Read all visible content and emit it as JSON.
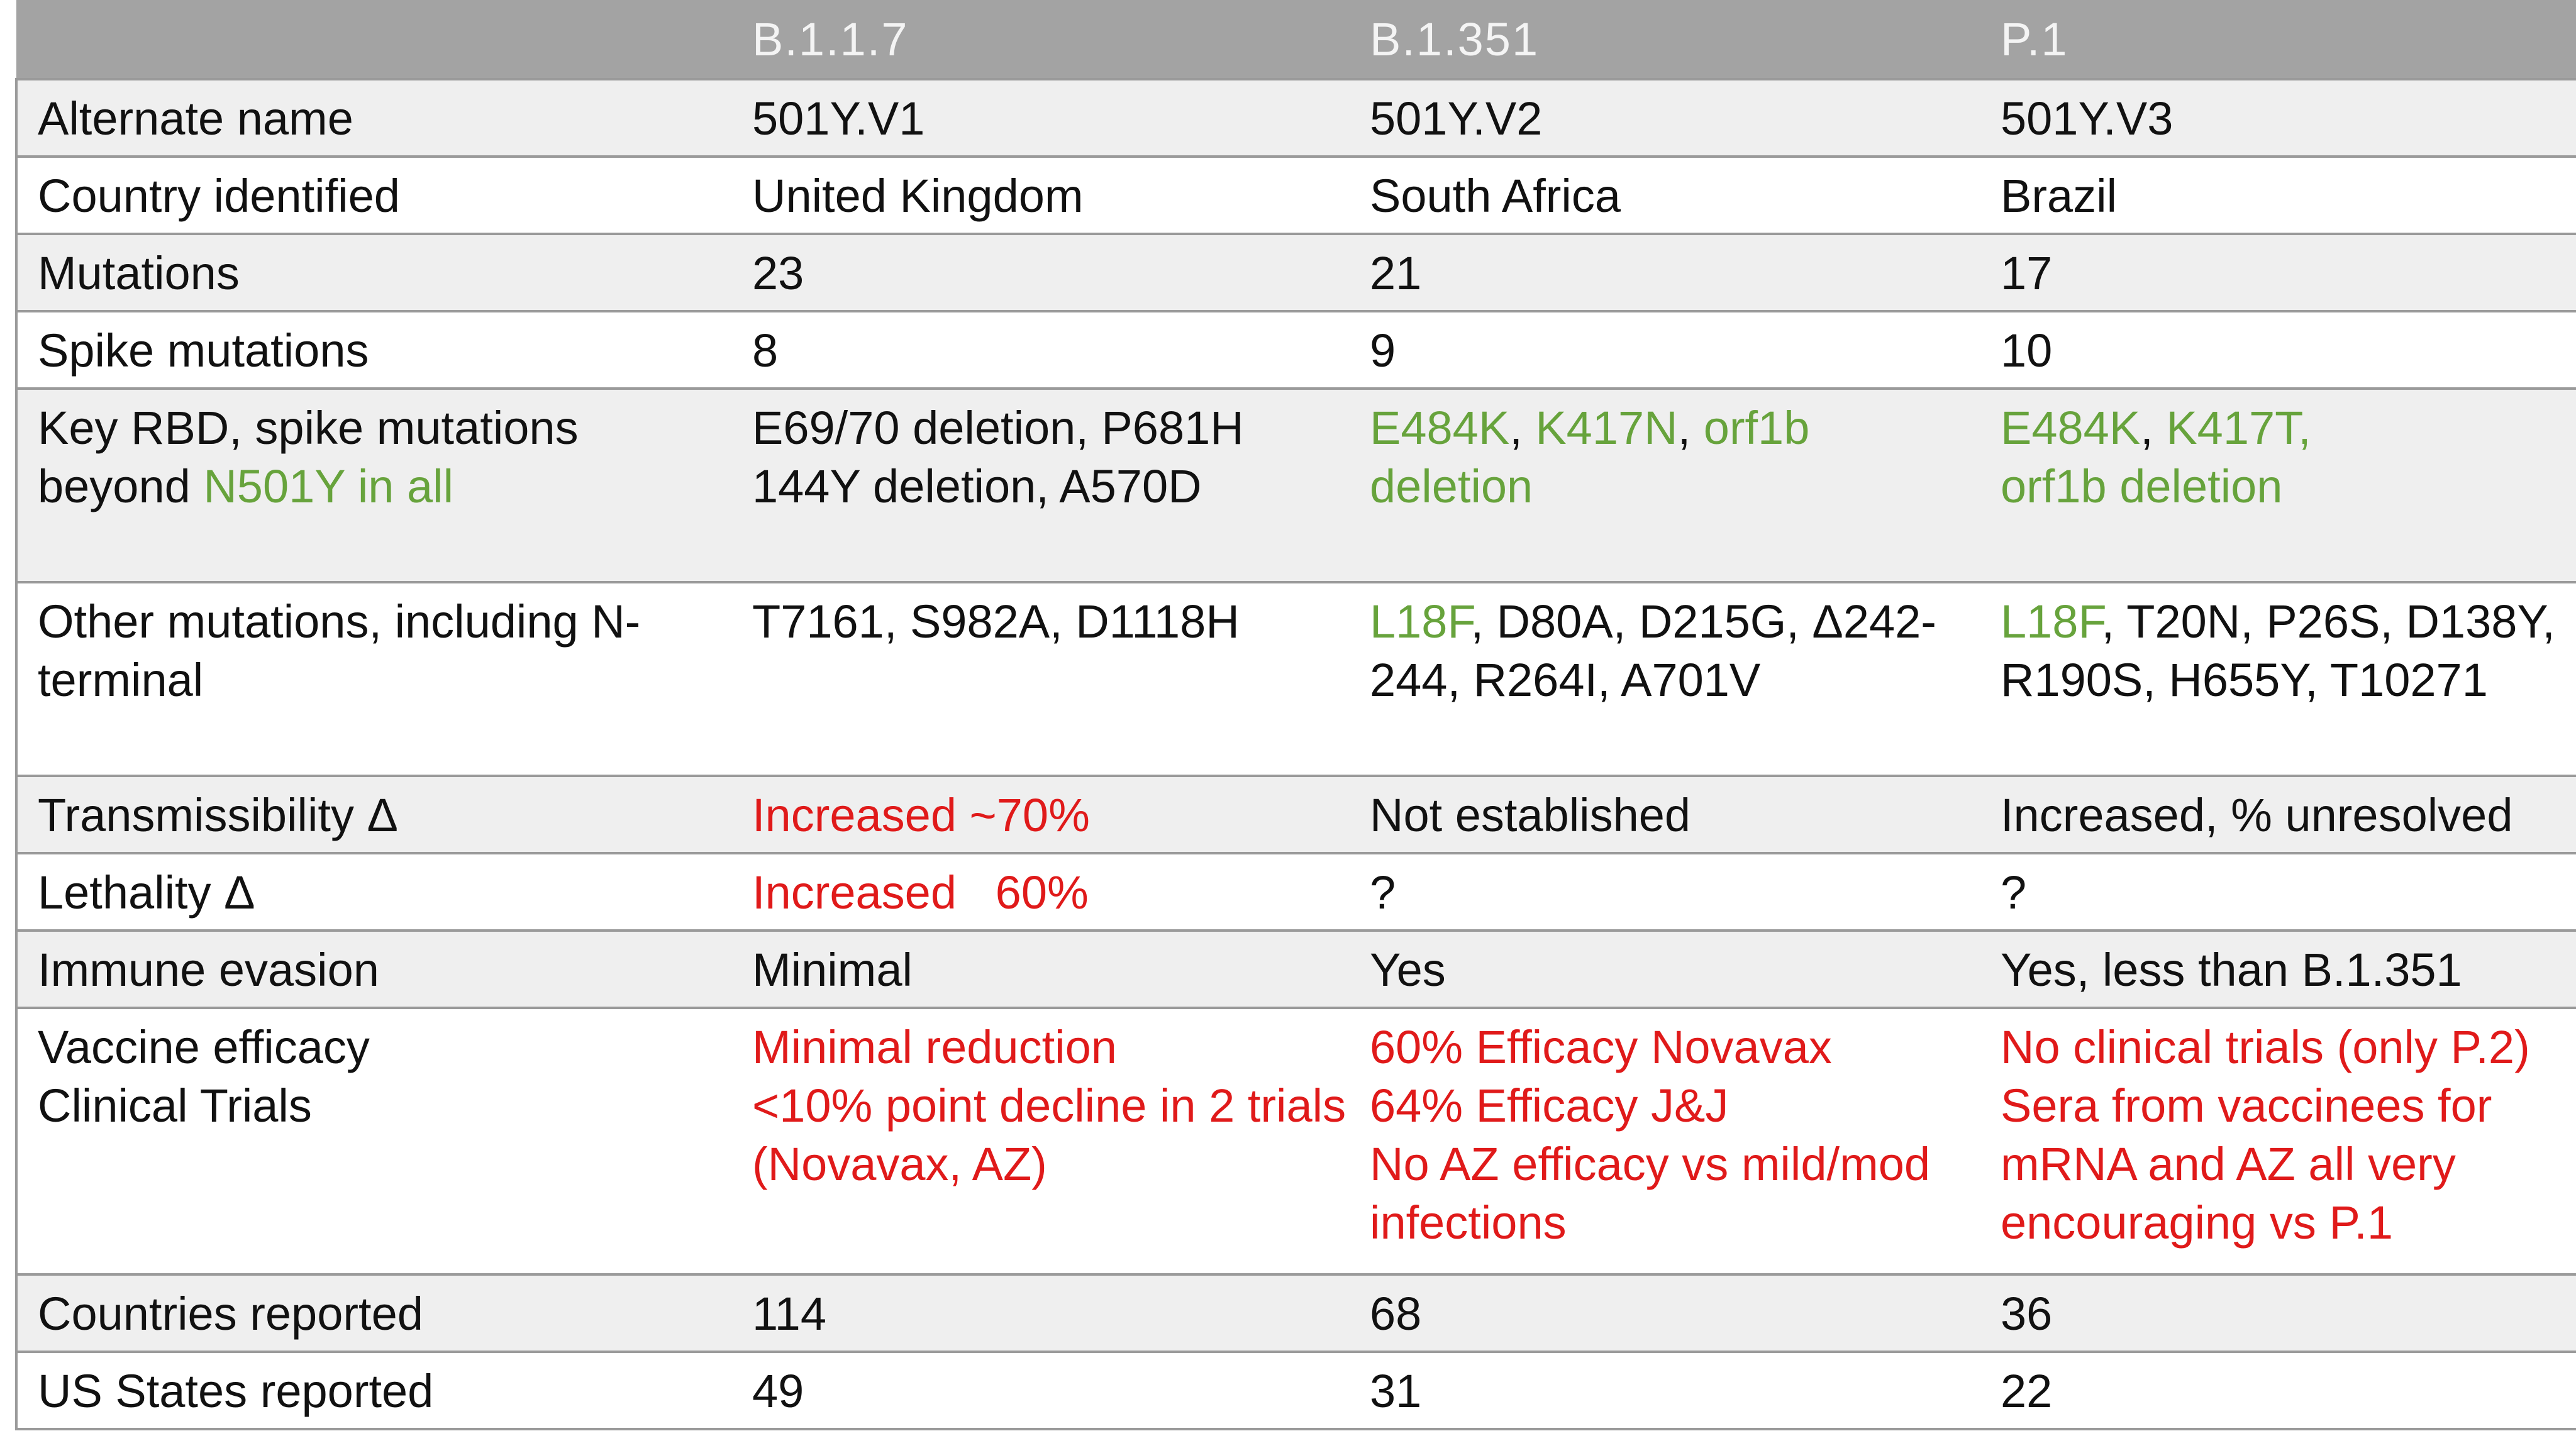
{
  "table": {
    "header": [
      "",
      "B.1.1.7",
      "B.1.351",
      "P.1"
    ],
    "rows": {
      "alternate_name": {
        "label": "Alternate name",
        "values": [
          "501Y.V1",
          "501Y.V2",
          "501Y.V3"
        ]
      },
      "country_identified": {
        "label": "Country identified",
        "values": [
          "United Kingdom",
          "South Africa",
          "Brazil"
        ]
      },
      "mutations": {
        "label": "Mutations",
        "values": [
          "23",
          "21",
          "17"
        ]
      },
      "spike_mutations": {
        "label": "Spike mutations",
        "values": [
          "8",
          "9",
          "10"
        ]
      },
      "key_rbd": {
        "label_part1": "Key RBD, spike mutations beyond ",
        "label_part2": "N501Y in all",
        "b117_line1": "E69/70 deletion, P681H",
        "b117_line2": "144Y deletion, A570D",
        "b1351": {
          "m1": "E484K",
          "sep1": ", ",
          "m2": "K417N",
          "sep2": ", ",
          "m3": "orf1b deletion"
        },
        "p1": {
          "m1": "E484K",
          "sep1": ", ",
          "m2": "K417T,",
          "m3": "orf1b deletion"
        }
      },
      "other_mutations": {
        "label": "Other mutations, including N-terminal",
        "b117": "T7161, S982A, D1118H",
        "b1351_green": "L18F",
        "b1351_rest": ", D80A, D215G, Δ242-244, R264I, A701V",
        "p1_green": "L18F",
        "p1_rest": ", T20N, P26S, D138Y, R190S, H655Y, T10271"
      },
      "transmissibility": {
        "label": "Transmissibility Δ",
        "values": [
          "Increased ~70%",
          "Not established",
          "Increased, % unresolved"
        ]
      },
      "lethality": {
        "label": "Lethality Δ",
        "values": [
          "Increased   60%",
          "?",
          "?"
        ]
      },
      "immune_evasion": {
        "label": "Immune evasion",
        "values": [
          "Minimal",
          "Yes",
          "Yes, less than B.1.351"
        ]
      },
      "vaccine_efficacy": {
        "label_line1": "Vaccine efficacy",
        "label_line2": "Clinical Trials",
        "b117": [
          "Minimal reduction",
          "<10% point decline in 2 trials (Novavax, AZ)"
        ],
        "b1351": [
          "60% Efficacy Novavax",
          "64% Efficacy J&J",
          "No AZ efficacy vs mild/mod infections"
        ],
        "p1": [
          "No clinical trials (only P.2)",
          "Sera from vaccinees for mRNA and AZ all very encouraging vs P.1"
        ]
      },
      "countries_reported": {
        "label": "Countries reported",
        "values": [
          "114",
          "68",
          "36"
        ]
      },
      "us_states_reported": {
        "label": "US States reported",
        "values": [
          "49",
          "31",
          "22"
        ]
      }
    },
    "colors": {
      "header_bg": "#a3a3a3",
      "header_text": "#f4f4f4",
      "row_alt_bg": "#efefef",
      "border": "#9a9a9a",
      "green": "#67a33c",
      "red": "#e01a1a"
    }
  }
}
